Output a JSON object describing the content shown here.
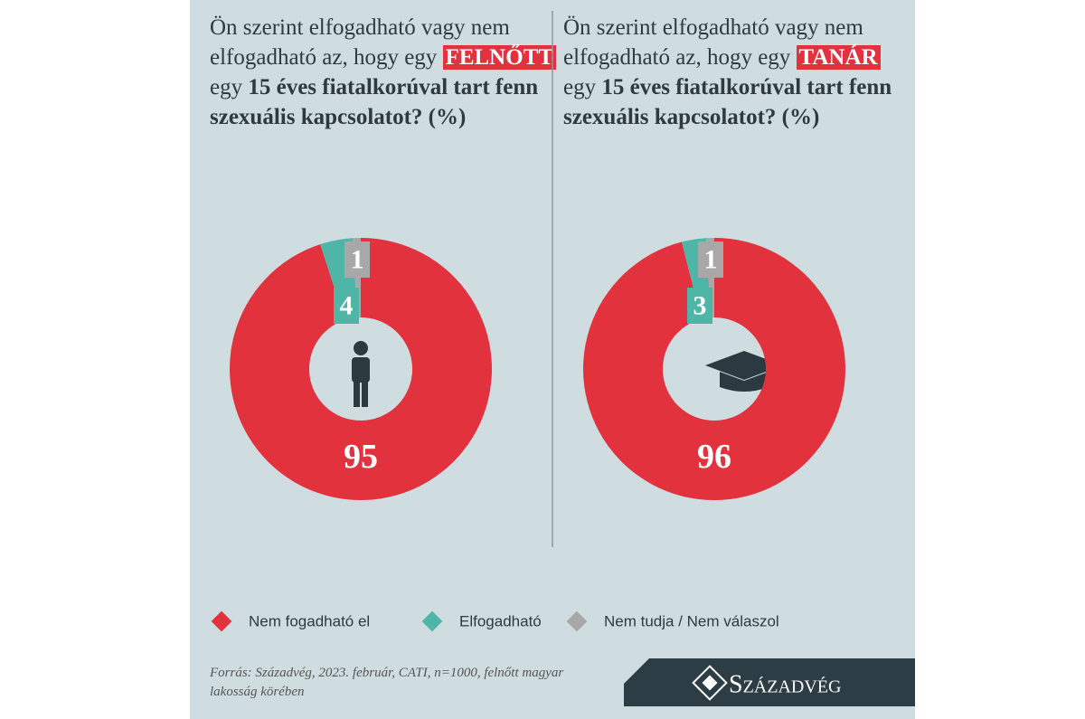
{
  "chart_data": [
    {
      "type": "pie",
      "title": [
        "Ön szerint elfogadható vagy nem elfogadható az, hogy egy",
        "FELNŐTT",
        "egy",
        "15 éves fiatalkorúval tart fenn szexuális kapcsolatot? (%)"
      ],
      "categories": [
        "Nem fogadható el",
        "Elfogadható",
        "Nem tudja / Nem válaszol"
      ],
      "values": [
        95,
        4,
        1
      ],
      "colors": [
        "#e1323e",
        "#4fb5a6",
        "#a8a8a8"
      ]
    },
    {
      "type": "pie",
      "title": [
        "Ön szerint elfogadható vagy nem elfogadható az, hogy egy",
        "TANÁR",
        "egy",
        "15 éves fiatalkorúval tart fenn szexuális kapcsolatot? (%)"
      ],
      "categories": [
        "Nem fogadható el",
        "Elfogadható",
        "Nem tudja / Nem válaszol"
      ],
      "values": [
        96,
        3,
        1
      ],
      "colors": [
        "#e1323e",
        "#4fb5a6",
        "#a8a8a8"
      ]
    }
  ],
  "source": "Forrás: Századvég, 2023. február, CATI, n=1000, felnőtt magyar lakosság körében",
  "brand": "Századvég"
}
